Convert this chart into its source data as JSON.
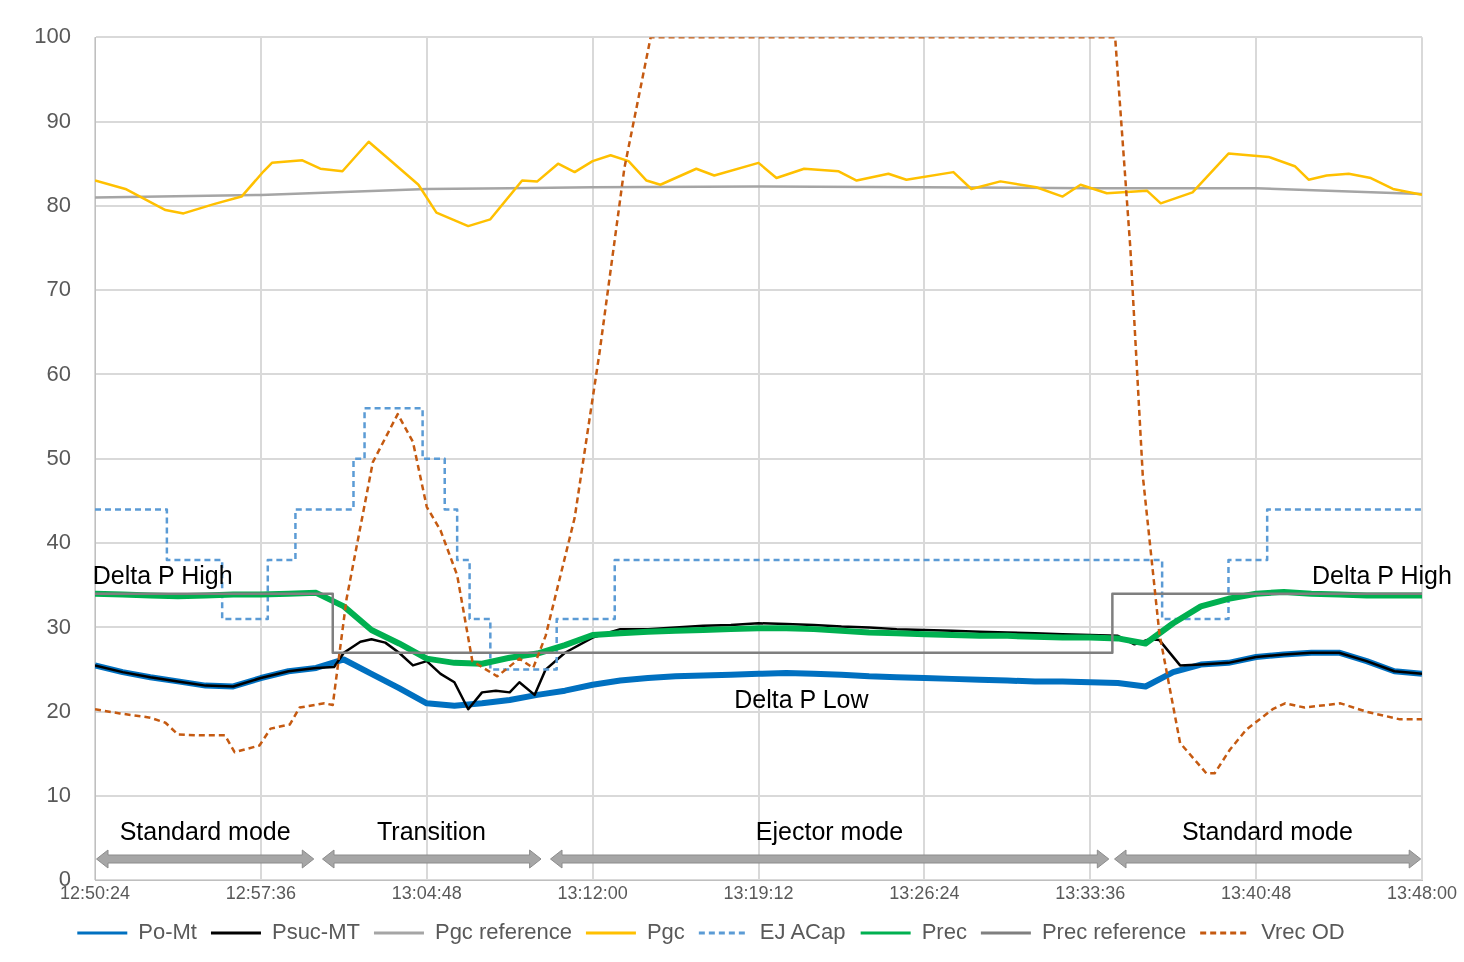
{
  "chart_data": {
    "type": "line",
    "xlim": [
      12.84,
      13.8
    ],
    "ylim": [
      0,
      100
    ],
    "xticks": [
      {
        "value": 12.84,
        "label": "12:50:24"
      },
      {
        "value": 12.96,
        "label": "12:57:36"
      },
      {
        "value": 13.08,
        "label": "13:04:48"
      },
      {
        "value": 13.2,
        "label": "13:12:00"
      },
      {
        "value": 13.32,
        "label": "13:19:12"
      },
      {
        "value": 13.44,
        "label": "13:26:24"
      },
      {
        "value": 13.56,
        "label": "13:33:36"
      },
      {
        "value": 13.68,
        "label": "13:40:48"
      },
      {
        "value": 13.8,
        "label": "13:48:00"
      }
    ],
    "yticks": [
      0,
      10,
      20,
      30,
      40,
      50,
      60,
      70,
      80,
      90,
      100
    ],
    "grid": true,
    "legend": "bottom",
    "marker": "none",
    "x": [
      12.84,
      12.86,
      12.88,
      12.9,
      12.92,
      12.94,
      12.96,
      12.98,
      13.0,
      13.02,
      13.04,
      13.06,
      13.08,
      13.1,
      13.12,
      13.14,
      13.16,
      13.18,
      13.2,
      13.22,
      13.24,
      13.26,
      13.28,
      13.3,
      13.32,
      13.34,
      13.36,
      13.38,
      13.4,
      13.42,
      13.44,
      13.46,
      13.48,
      13.5,
      13.52,
      13.54,
      13.56,
      13.58,
      13.6,
      13.62,
      13.64,
      13.66,
      13.68,
      13.7,
      13.72,
      13.74,
      13.76,
      13.78,
      13.8
    ],
    "series": [
      {
        "name": "Po-Mt",
        "color": "#0070c0",
        "line_style": "solid",
        "values": [
          25.5,
          24.7,
          24.1,
          23.6,
          23.1,
          23,
          24,
          24.8,
          25.2,
          26.2,
          24.5,
          22.8,
          21,
          20.7,
          21,
          21.4,
          22,
          22.5,
          23.2,
          23.7,
          24,
          24.2,
          24.3,
          24.4,
          24.5,
          24.6,
          24.5,
          24.4,
          24.2,
          24.1,
          24,
          23.9,
          23.8,
          23.7,
          23.6,
          23.6,
          23.5,
          23.4,
          23,
          24.7,
          25.6,
          25.8,
          26.5,
          26.8,
          27,
          27,
          26,
          24.8,
          24.5
        ]
      },
      {
        "name": "Psuc-MT",
        "color": "#000000",
        "line_style": "solid",
        "x": [
          12.84,
          12.86,
          12.88,
          12.9,
          12.92,
          12.94,
          12.96,
          12.98,
          13.0,
          13.013,
          13.02,
          13.032,
          13.04,
          13.05,
          13.06,
          13.07,
          13.08,
          13.09,
          13.1,
          13.11,
          13.12,
          13.13,
          13.14,
          13.147,
          13.158,
          13.166,
          13.18,
          13.2,
          13.22,
          13.24,
          13.26,
          13.28,
          13.3,
          13.32,
          13.34,
          13.36,
          13.38,
          13.4,
          13.42,
          13.44,
          13.46,
          13.48,
          13.5,
          13.52,
          13.54,
          13.56,
          13.58,
          13.592,
          13.603,
          13.61,
          13.625,
          13.64,
          13.66,
          13.68,
          13.7,
          13.72,
          13.74,
          13.76,
          13.78,
          13.8
        ],
        "values": [
          25.5,
          24.7,
          24.1,
          23.6,
          23.1,
          23,
          24,
          24.8,
          25.2,
          25.3,
          27,
          28.3,
          28.6,
          28.2,
          27,
          25.5,
          26,
          24.5,
          23.5,
          20.3,
          22.3,
          22.5,
          22.3,
          23.5,
          22,
          25,
          27,
          28.8,
          29.8,
          29.8,
          30,
          30.2,
          30.3,
          30.5,
          30.4,
          30.3,
          30.1,
          30,
          29.8,
          29.7,
          29.6,
          29.5,
          29.4,
          29.3,
          29.2,
          29.1,
          29,
          28,
          28.6,
          28.5,
          25.5,
          25.6,
          25.8,
          26.5,
          26.8,
          27,
          27,
          26,
          24.8,
          24.5
        ]
      },
      {
        "name": "Pgc reference",
        "color": "#a5a5a5",
        "line_style": "solid",
        "x": [
          12.84,
          12.96,
          13.08,
          13.2,
          13.32,
          13.44,
          13.56,
          13.68,
          13.8
        ],
        "values": [
          81,
          81.3,
          82,
          82.2,
          82.3,
          82.2,
          82.1,
          82.1,
          81.4
        ]
      },
      {
        "name": "Pgc",
        "color": "#ffc000",
        "line_style": "solid",
        "x": [
          12.84,
          12.862,
          12.891,
          12.904,
          12.926,
          12.946,
          12.962,
          12.968,
          12.99,
          13.003,
          13.019,
          13.038,
          13.055,
          13.074,
          13.087,
          13.11,
          13.126,
          13.149,
          13.16,
          13.175,
          13.187,
          13.2,
          13.213,
          13.226,
          13.239,
          13.249,
          13.275,
          13.288,
          13.32,
          13.333,
          13.353,
          13.378,
          13.391,
          13.414,
          13.427,
          13.461,
          13.474,
          13.495,
          13.521,
          13.54,
          13.553,
          13.572,
          13.601,
          13.611,
          13.634,
          13.66,
          13.689,
          13.708,
          13.718,
          13.731,
          13.747,
          13.763,
          13.779,
          13.8
        ],
        "values": [
          83,
          82,
          79.5,
          79.1,
          80.2,
          81.1,
          84.1,
          85.1,
          85.4,
          84.4,
          84.1,
          87.6,
          85.2,
          82.5,
          79.2,
          77.6,
          78.4,
          83,
          82.9,
          85,
          84,
          85.3,
          86,
          85.3,
          83,
          82.5,
          84.4,
          83.6,
          85.1,
          83.3,
          84.4,
          84.1,
          83,
          83.8,
          83.1,
          84,
          82,
          82.9,
          82.2,
          81.1,
          82.5,
          81.5,
          81.8,
          80.3,
          81.6,
          86.2,
          85.8,
          84.7,
          83.1,
          83.6,
          83.8,
          83.3,
          82,
          81.3
        ]
      },
      {
        "name": "EJ ACap",
        "color": "#5b9bd5",
        "line_style": "dashed",
        "type": "step",
        "x": [
          12.84,
          12.892,
          12.932,
          12.965,
          12.985,
          13.027,
          13.035,
          13.077,
          13.093,
          13.102,
          13.111,
          13.126,
          13.174,
          13.216,
          13.612,
          13.66,
          13.688,
          13.8
        ],
        "values": [
          44,
          38,
          31,
          38,
          44,
          50,
          56,
          50,
          44,
          38,
          31,
          25,
          31,
          38,
          31,
          38,
          44,
          44
        ]
      },
      {
        "name": "Prec",
        "color": "#00b050",
        "line_style": "solid",
        "values": [
          34,
          33.9,
          33.8,
          33.7,
          33.8,
          33.9,
          33.9,
          34,
          34.1,
          32.5,
          29.7,
          28.1,
          26.3,
          25.8,
          25.7,
          26.4,
          26.9,
          27.9,
          29.1,
          29.3,
          29.5,
          29.6,
          29.7,
          29.8,
          29.9,
          29.9,
          29.8,
          29.6,
          29.4,
          29.3,
          29.2,
          29.1,
          29,
          29,
          28.9,
          28.8,
          28.8,
          28.7,
          28.1,
          30.5,
          32.5,
          33.4,
          34,
          34.2,
          34,
          33.9,
          33.8,
          33.8,
          33.8
        ]
      },
      {
        "name": "Prec reference",
        "color": "#7f7f7f",
        "line_style": "solid",
        "type": "step",
        "x": [
          12.84,
          13.012,
          13.576,
          13.8
        ],
        "values": [
          34,
          27,
          34,
          34
        ]
      },
      {
        "name": "Vrec OD",
        "color": "#c55a11",
        "line_style": "dashed",
        "x": [
          12.84,
          12.858,
          12.88,
          12.891,
          12.9,
          12.916,
          12.934,
          12.941,
          12.959,
          12.967,
          12.981,
          12.988,
          13.006,
          13.012,
          13.022,
          13.041,
          13.059,
          13.07,
          13.08,
          13.09,
          13.102,
          13.113,
          13.131,
          13.147,
          13.157,
          13.166,
          13.187,
          13.205,
          13.223,
          13.242,
          13.578,
          13.589,
          13.598,
          13.61,
          13.625,
          13.644,
          13.65,
          13.661,
          13.673,
          13.692,
          13.701,
          13.715,
          13.741,
          13.76,
          13.784,
          13.8
        ],
        "values": [
          20.3,
          19.8,
          19.3,
          18.7,
          17.3,
          17.2,
          17.2,
          15.2,
          16,
          18,
          18.5,
          20.5,
          21,
          20.8,
          33.4,
          49.6,
          55.3,
          52,
          44.3,
          41.5,
          36.2,
          26,
          24.2,
          26.3,
          25.2,
          29,
          43,
          62.6,
          84.5,
          100,
          100,
          75,
          48,
          29.3,
          16.3,
          12.7,
          12.7,
          15.5,
          17.9,
          20.3,
          21,
          20.5,
          21,
          20,
          19.1,
          19.1
        ]
      }
    ],
    "annotations": [
      {
        "text": "Delta P High",
        "x": 12.889,
        "y": 34
      },
      {
        "text": "Delta P High",
        "x": 13.771,
        "y": 34
      },
      {
        "text": "Delta P Low",
        "x": 13.351,
        "y": 27
      },
      "Standard mode",
      "Transition",
      "Ejector mode",
      "Standard mode"
    ]
  }
}
